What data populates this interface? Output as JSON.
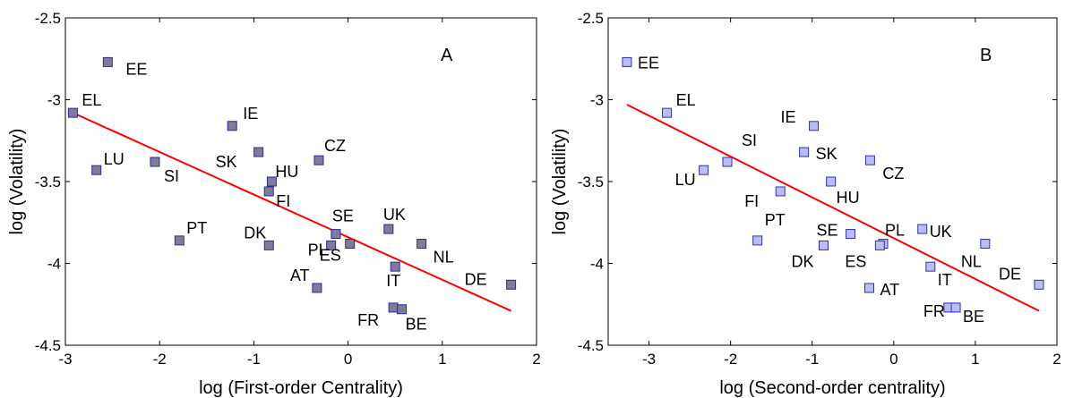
{
  "colors": {
    "fit_line": "#ff0000",
    "marker_A": "#7d7d9a",
    "marker_A_edge": "#2a2aa0",
    "marker_B": "#b9bdf0",
    "marker_B_edge": "#3030b0",
    "axis": "#000000"
  },
  "chart_data": [
    {
      "type": "scatter",
      "panel_label": "A",
      "xlabel": "log (First-order Centrality)",
      "ylabel": "log (Volatility)",
      "xlim": [
        -3,
        2
      ],
      "ylim": [
        -4.5,
        -2.5
      ],
      "xticks": [
        -3,
        -2,
        -1,
        0,
        1,
        2
      ],
      "xtick_labels": [
        "-3",
        "-2",
        "-1",
        "0",
        "1",
        "2"
      ],
      "yticks": [
        -2.5,
        -3,
        -3.5,
        -4,
        -4.5
      ],
      "ytick_labels": [
        "-2.5",
        "-3",
        "-3.5",
        "-4",
        "-4.5"
      ],
      "grid": false,
      "marker": "square",
      "points": [
        {
          "label": "EE",
          "x": -2.55,
          "y": -2.77
        },
        {
          "label": "EL",
          "x": -2.92,
          "y": -3.08
        },
        {
          "label": "IE",
          "x": -1.23,
          "y": -3.16
        },
        {
          "label": "LU",
          "x": -2.67,
          "y": -3.43
        },
        {
          "label": "SI",
          "x": -2.05,
          "y": -3.38
        },
        {
          "label": "SK",
          "x": -0.95,
          "y": -3.32
        },
        {
          "label": "CZ",
          "x": -0.31,
          "y": -3.37
        },
        {
          "label": "HU",
          "x": -0.81,
          "y": -3.5
        },
        {
          "label": "FI",
          "x": -0.84,
          "y": -3.56
        },
        {
          "label": "PT",
          "x": -1.79,
          "y": -3.86
        },
        {
          "label": "DK",
          "x": -0.84,
          "y": -3.89
        },
        {
          "label": "SE",
          "x": -0.13,
          "y": -3.82
        },
        {
          "label": "PL",
          "x": -0.18,
          "y": -3.89
        },
        {
          "label": "ES",
          "x": 0.02,
          "y": -3.88
        },
        {
          "label": "UK",
          "x": 0.43,
          "y": -3.79
        },
        {
          "label": "NL",
          "x": 0.78,
          "y": -3.88
        },
        {
          "label": "AT",
          "x": -0.33,
          "y": -4.15
        },
        {
          "label": "IT",
          "x": 0.5,
          "y": -4.02
        },
        {
          "label": "FR",
          "x": 0.48,
          "y": -4.27
        },
        {
          "label": "BE",
          "x": 0.57,
          "y": -4.28
        },
        {
          "label": "DE",
          "x": 1.73,
          "y": -4.13
        }
      ],
      "fit_line": {
        "x": [
          -2.92,
          1.73
        ],
        "y": [
          -3.08,
          -4.29
        ]
      }
    },
    {
      "type": "scatter",
      "panel_label": "B",
      "xlabel": "log (Second-order centrality)",
      "ylabel": "log (Volatility)",
      "xlim": [
        -3.5,
        2
      ],
      "ylim": [
        -4.5,
        -2.5
      ],
      "xticks": [
        -3,
        -2,
        -1,
        0,
        1,
        2
      ],
      "xtick_labels": [
        "-3",
        "-2",
        "-1",
        "0",
        "1",
        "2"
      ],
      "yticks": [
        -2.5,
        -3,
        -3.5,
        -4,
        -4.5
      ],
      "ytick_labels": [
        "-2.5",
        "-3",
        "-3.5",
        "-4",
        "-4.5"
      ],
      "grid": false,
      "marker": "square",
      "points": [
        {
          "label": "EE",
          "x": -3.27,
          "y": -2.77
        },
        {
          "label": "EL",
          "x": -2.78,
          "y": -3.08
        },
        {
          "label": "IE",
          "x": -0.98,
          "y": -3.16
        },
        {
          "label": "SI",
          "x": -2.04,
          "y": -3.38
        },
        {
          "label": "LU",
          "x": -2.33,
          "y": -3.43
        },
        {
          "label": "SK",
          "x": -1.1,
          "y": -3.32
        },
        {
          "label": "CZ",
          "x": -0.29,
          "y": -3.37
        },
        {
          "label": "HU",
          "x": -0.77,
          "y": -3.5
        },
        {
          "label": "FI",
          "x": -1.39,
          "y": -3.56
        },
        {
          "label": "PT",
          "x": -1.67,
          "y": -3.86
        },
        {
          "label": "SE",
          "x": -0.53,
          "y": -3.82
        },
        {
          "label": "DK",
          "x": -0.86,
          "y": -3.89
        },
        {
          "label": "PL",
          "x": -0.13,
          "y": -3.88
        },
        {
          "label": "ES",
          "x": -0.17,
          "y": -3.89
        },
        {
          "label": "UK",
          "x": 0.35,
          "y": -3.79
        },
        {
          "label": "NL",
          "x": 1.12,
          "y": -3.88
        },
        {
          "label": "IT",
          "x": 0.45,
          "y": -4.02
        },
        {
          "label": "AT",
          "x": -0.3,
          "y": -4.15
        },
        {
          "label": "FR",
          "x": 0.67,
          "y": -4.27
        },
        {
          "label": "BE",
          "x": 0.76,
          "y": -4.27
        },
        {
          "label": "DE",
          "x": 1.78,
          "y": -4.13
        }
      ],
      "fit_line": {
        "x": [
          -3.27,
          1.78
        ],
        "y": [
          -3.03,
          -4.29
        ]
      }
    }
  ]
}
